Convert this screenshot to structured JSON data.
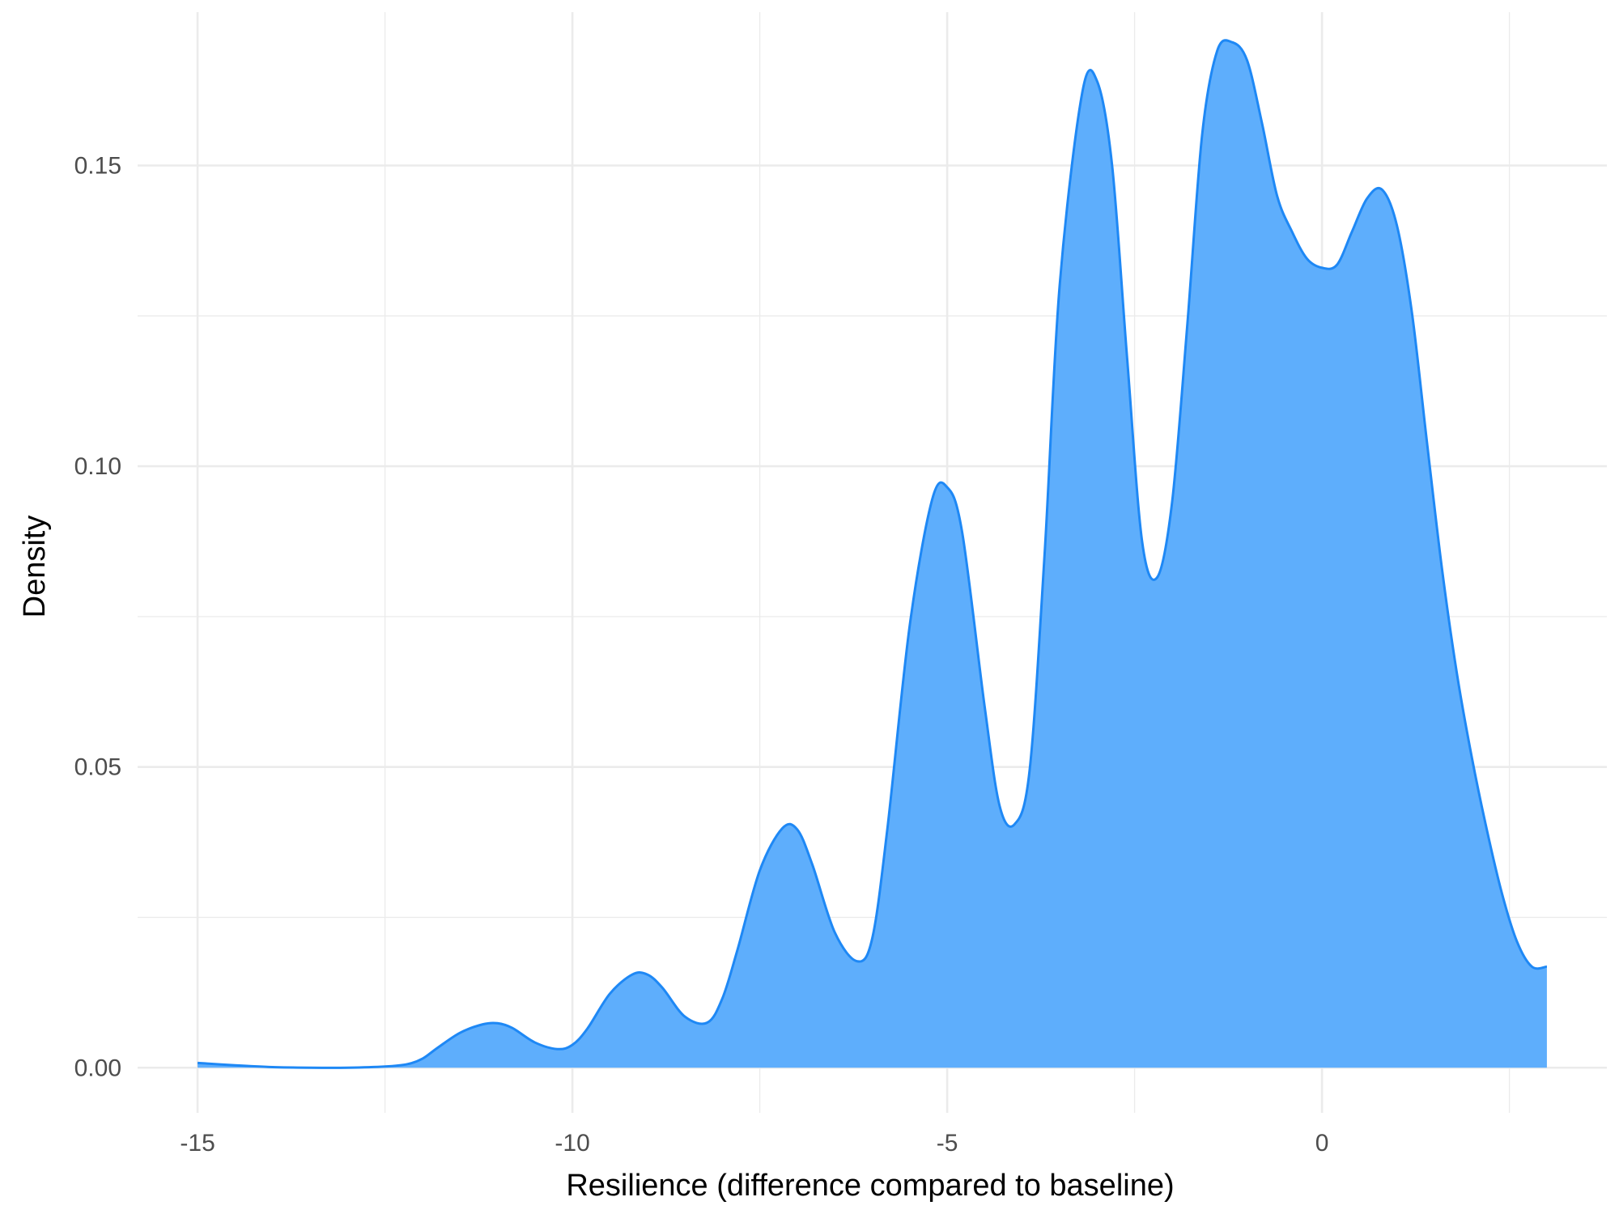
{
  "chart_data": {
    "type": "area",
    "title": "",
    "xlabel": "Resilience (difference compared to baseline)",
    "ylabel": "Density",
    "xlim": [
      -15.8,
      3.8
    ],
    "ylim": [
      -0.0075,
      0.1755
    ],
    "x_major_ticks": [
      -15,
      -10,
      -5,
      0
    ],
    "x_tick_labels": [
      "-15",
      "-10",
      "-5",
      "0"
    ],
    "x_minor_ticks": [
      -12.5,
      -7.5,
      -2.5,
      2.5
    ],
    "y_major_ticks": [
      0,
      0.05,
      0.1,
      0.15
    ],
    "y_tick_labels": [
      "0.00",
      "0.05",
      "0.10",
      "0.15"
    ],
    "y_minor_ticks": [
      0.025,
      0.075,
      0.125
    ],
    "grid": true,
    "legend": "none",
    "fill_color": "#5eaefc",
    "line_color": "#1e88f5",
    "grid_color": "#ebebeb",
    "series": [
      {
        "x": [
          -15,
          -14.5,
          -14,
          -13.5,
          -13,
          -12.5,
          -12.2,
          -12,
          -11.8,
          -11.5,
          -11.2,
          -11,
          -10.8,
          -10.5,
          -10.2,
          -10,
          -9.8,
          -9.5,
          -9.2,
          -9,
          -8.8,
          -8.5,
          -8.2,
          -8,
          -7.8,
          -7.5,
          -7.2,
          -7,
          -6.8,
          -6.5,
          -6.2,
          -6,
          -5.8,
          -5.5,
          -5.2,
          -5,
          -4.8,
          -4.5,
          -4.3,
          -4.1,
          -3.9,
          -3.7,
          -3.5,
          -3.2,
          -3,
          -2.8,
          -2.6,
          -2.4,
          -2.2,
          -2,
          -1.8,
          -1.6,
          -1.4,
          -1.2,
          -1,
          -0.8,
          -0.6,
          -0.4,
          -0.2,
          0,
          0.2,
          0.4,
          0.6,
          0.8,
          1,
          1.2,
          1.4,
          1.6,
          1.8,
          2,
          2.2,
          2.4,
          2.6,
          2.8,
          3
        ],
        "y": [
          0.0008,
          0.0004,
          0.0001,
          0.0,
          0.0,
          0.0002,
          0.0006,
          0.0015,
          0.0033,
          0.0058,
          0.0072,
          0.0074,
          0.0066,
          0.0042,
          0.0031,
          0.0038,
          0.0065,
          0.0123,
          0.0155,
          0.0155,
          0.0133,
          0.0085,
          0.0075,
          0.0115,
          0.0195,
          0.0328,
          0.0398,
          0.0396,
          0.0338,
          0.0225,
          0.0177,
          0.0215,
          0.0395,
          0.0735,
          0.0945,
          0.0965,
          0.089,
          0.06,
          0.0435,
          0.0405,
          0.0495,
          0.0855,
          0.13,
          0.162,
          0.164,
          0.15,
          0.118,
          0.0875,
          0.0815,
          0.094,
          0.123,
          0.155,
          0.169,
          0.1705,
          0.1675,
          0.157,
          0.145,
          0.139,
          0.1345,
          0.133,
          0.1335,
          0.139,
          0.1445,
          0.146,
          0.14,
          0.1255,
          0.104,
          0.083,
          0.0655,
          0.0515,
          0.0395,
          0.029,
          0.021,
          0.0168,
          0.0168
        ]
      }
    ]
  }
}
